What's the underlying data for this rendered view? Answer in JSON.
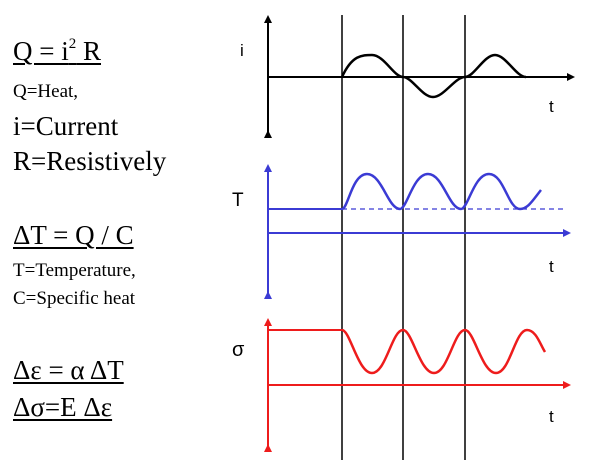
{
  "equations": {
    "heat": {
      "lhs": "Q = i",
      "exponent": "2",
      "rhs": " R",
      "definitions": [
        "Q=Heat,",
        "i=Current",
        "R=Resistively"
      ]
    },
    "temperature": {
      "formula": "ΔT = Q / C",
      "definitions": [
        "T=Temperature,",
        "C=Specific heat"
      ]
    },
    "strain": {
      "formula": "Δε = α ΔT"
    },
    "stress": {
      "formula": "Δσ=E Δε"
    }
  },
  "plots": {
    "current": {
      "ylabel": "i",
      "xlabel": "t",
      "color": "#000000"
    },
    "temperature": {
      "ylabel": "T",
      "xlabel": "t",
      "color": "#3b3bd4"
    },
    "stress": {
      "ylabel": "σ",
      "xlabel": "t",
      "color": "#ee1c1c"
    }
  },
  "colors": {
    "text": "#000000",
    "blue": "#3b3bd4",
    "red": "#ee1c1c"
  }
}
